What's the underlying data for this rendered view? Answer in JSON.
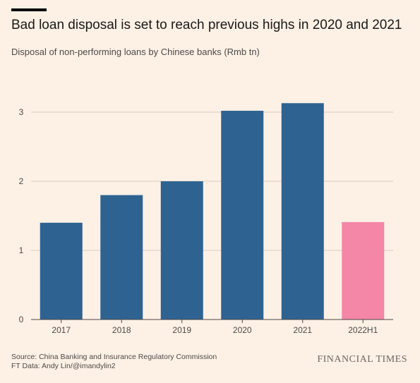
{
  "header": {
    "title": "Bad loan disposal is set to reach previous highs in 2020 and 2021",
    "subtitle": "Disposal of non-performing loans by Chinese banks (Rmb tn)"
  },
  "footer": {
    "source_line": "Source: China Banking and Insurance Regulatory Commission",
    "credit_line": "FT Data: Andy Lin/@imandylin2",
    "logo_text": "FINANCIAL TIMES"
  },
  "colors": {
    "background": "#fdf1e6",
    "bar_primary": "#2e6391",
    "bar_highlight": "#f486a8",
    "gridline": "#d8ccc1",
    "axis": "#4d4845"
  },
  "chart_data": {
    "type": "bar",
    "title": "Bad loan disposal is set to reach previous highs in 2020 and 2021",
    "subtitle": "Disposal of non-performing loans by Chinese banks (Rmb tn)",
    "xlabel": "",
    "ylabel": "",
    "categories": [
      "2017",
      "2018",
      "2019",
      "2020",
      "2021",
      "2022H1"
    ],
    "values": [
      1.4,
      1.8,
      2.0,
      3.02,
      3.13,
      1.41
    ],
    "highlight_index": 5,
    "ylim": [
      0,
      3.2
    ],
    "yticks": [
      "0",
      "1",
      "2",
      "3"
    ],
    "grid": true,
    "legend": "none"
  }
}
